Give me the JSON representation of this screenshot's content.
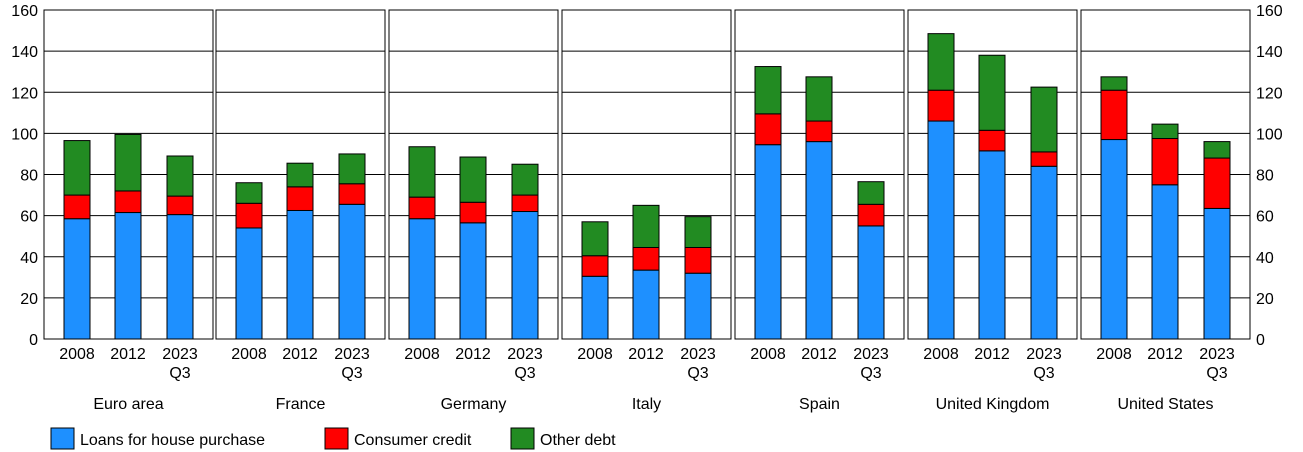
{
  "chart_data": {
    "type": "bar",
    "stacked": true,
    "ylim": [
      0,
      160
    ],
    "yticks": [
      0,
      20,
      40,
      60,
      80,
      100,
      120,
      140,
      160
    ],
    "grid": true,
    "legend_position": "bottom-left",
    "series": [
      {
        "name": "Loans for house purchase",
        "color": "#1e90ff"
      },
      {
        "name": "Consumer credit",
        "color": "#ff0000"
      },
      {
        "name": "Other debt",
        "color": "#228b22"
      }
    ],
    "panels": [
      {
        "name": "Euro area",
        "bars": [
          {
            "label": [
              "2008"
            ],
            "values": [
              58.5,
              11.5,
              26.5
            ]
          },
          {
            "label": [
              "2012"
            ],
            "values": [
              61.5,
              10.5,
              27.5
            ]
          },
          {
            "label": [
              "2023",
              "Q3"
            ],
            "values": [
              60.5,
              9,
              19.5
            ]
          }
        ]
      },
      {
        "name": "France",
        "bars": [
          {
            "label": [
              "2008"
            ],
            "values": [
              54,
              12,
              10
            ]
          },
          {
            "label": [
              "2012"
            ],
            "values": [
              62.5,
              11.5,
              11.5
            ]
          },
          {
            "label": [
              "2023",
              "Q3"
            ],
            "values": [
              65.5,
              10,
              14.5
            ]
          }
        ]
      },
      {
        "name": "Germany",
        "bars": [
          {
            "label": [
              "2008"
            ],
            "values": [
              58.5,
              10.5,
              24.5
            ]
          },
          {
            "label": [
              "2012"
            ],
            "values": [
              56.5,
              10,
              22
            ]
          },
          {
            "label": [
              "2023",
              "Q3"
            ],
            "values": [
              62,
              8,
              15
            ]
          }
        ]
      },
      {
        "name": "Italy",
        "bars": [
          {
            "label": [
              "2008"
            ],
            "values": [
              30.5,
              10,
              16.5
            ]
          },
          {
            "label": [
              "2012"
            ],
            "values": [
              33.5,
              11,
              20.5
            ]
          },
          {
            "label": [
              "2023",
              "Q3"
            ],
            "values": [
              32,
              12.5,
              15
            ]
          }
        ]
      },
      {
        "name": "Spain",
        "bars": [
          {
            "label": [
              "2008"
            ],
            "values": [
              94.5,
              15,
              23
            ]
          },
          {
            "label": [
              "2012"
            ],
            "values": [
              96,
              10,
              21.5
            ]
          },
          {
            "label": [
              "2023",
              "Q3"
            ],
            "values": [
              55,
              10.5,
              11
            ]
          }
        ]
      },
      {
        "name": "United Kingdom",
        "bars": [
          {
            "label": [
              "2008"
            ],
            "values": [
              106,
              15,
              27.5
            ]
          },
          {
            "label": [
              "2012"
            ],
            "values": [
              91.5,
              10,
              36.5
            ]
          },
          {
            "label": [
              "2023",
              "Q3"
            ],
            "values": [
              84,
              7,
              31.5
            ]
          }
        ]
      },
      {
        "name": "United States",
        "bars": [
          {
            "label": [
              "2008"
            ],
            "values": [
              97,
              24,
              6.5
            ]
          },
          {
            "label": [
              "2012"
            ],
            "values": [
              75,
              22.5,
              7
            ]
          },
          {
            "label": [
              "2023",
              "Q3"
            ],
            "values": [
              63.5,
              24.5,
              8
            ]
          }
        ]
      }
    ]
  }
}
